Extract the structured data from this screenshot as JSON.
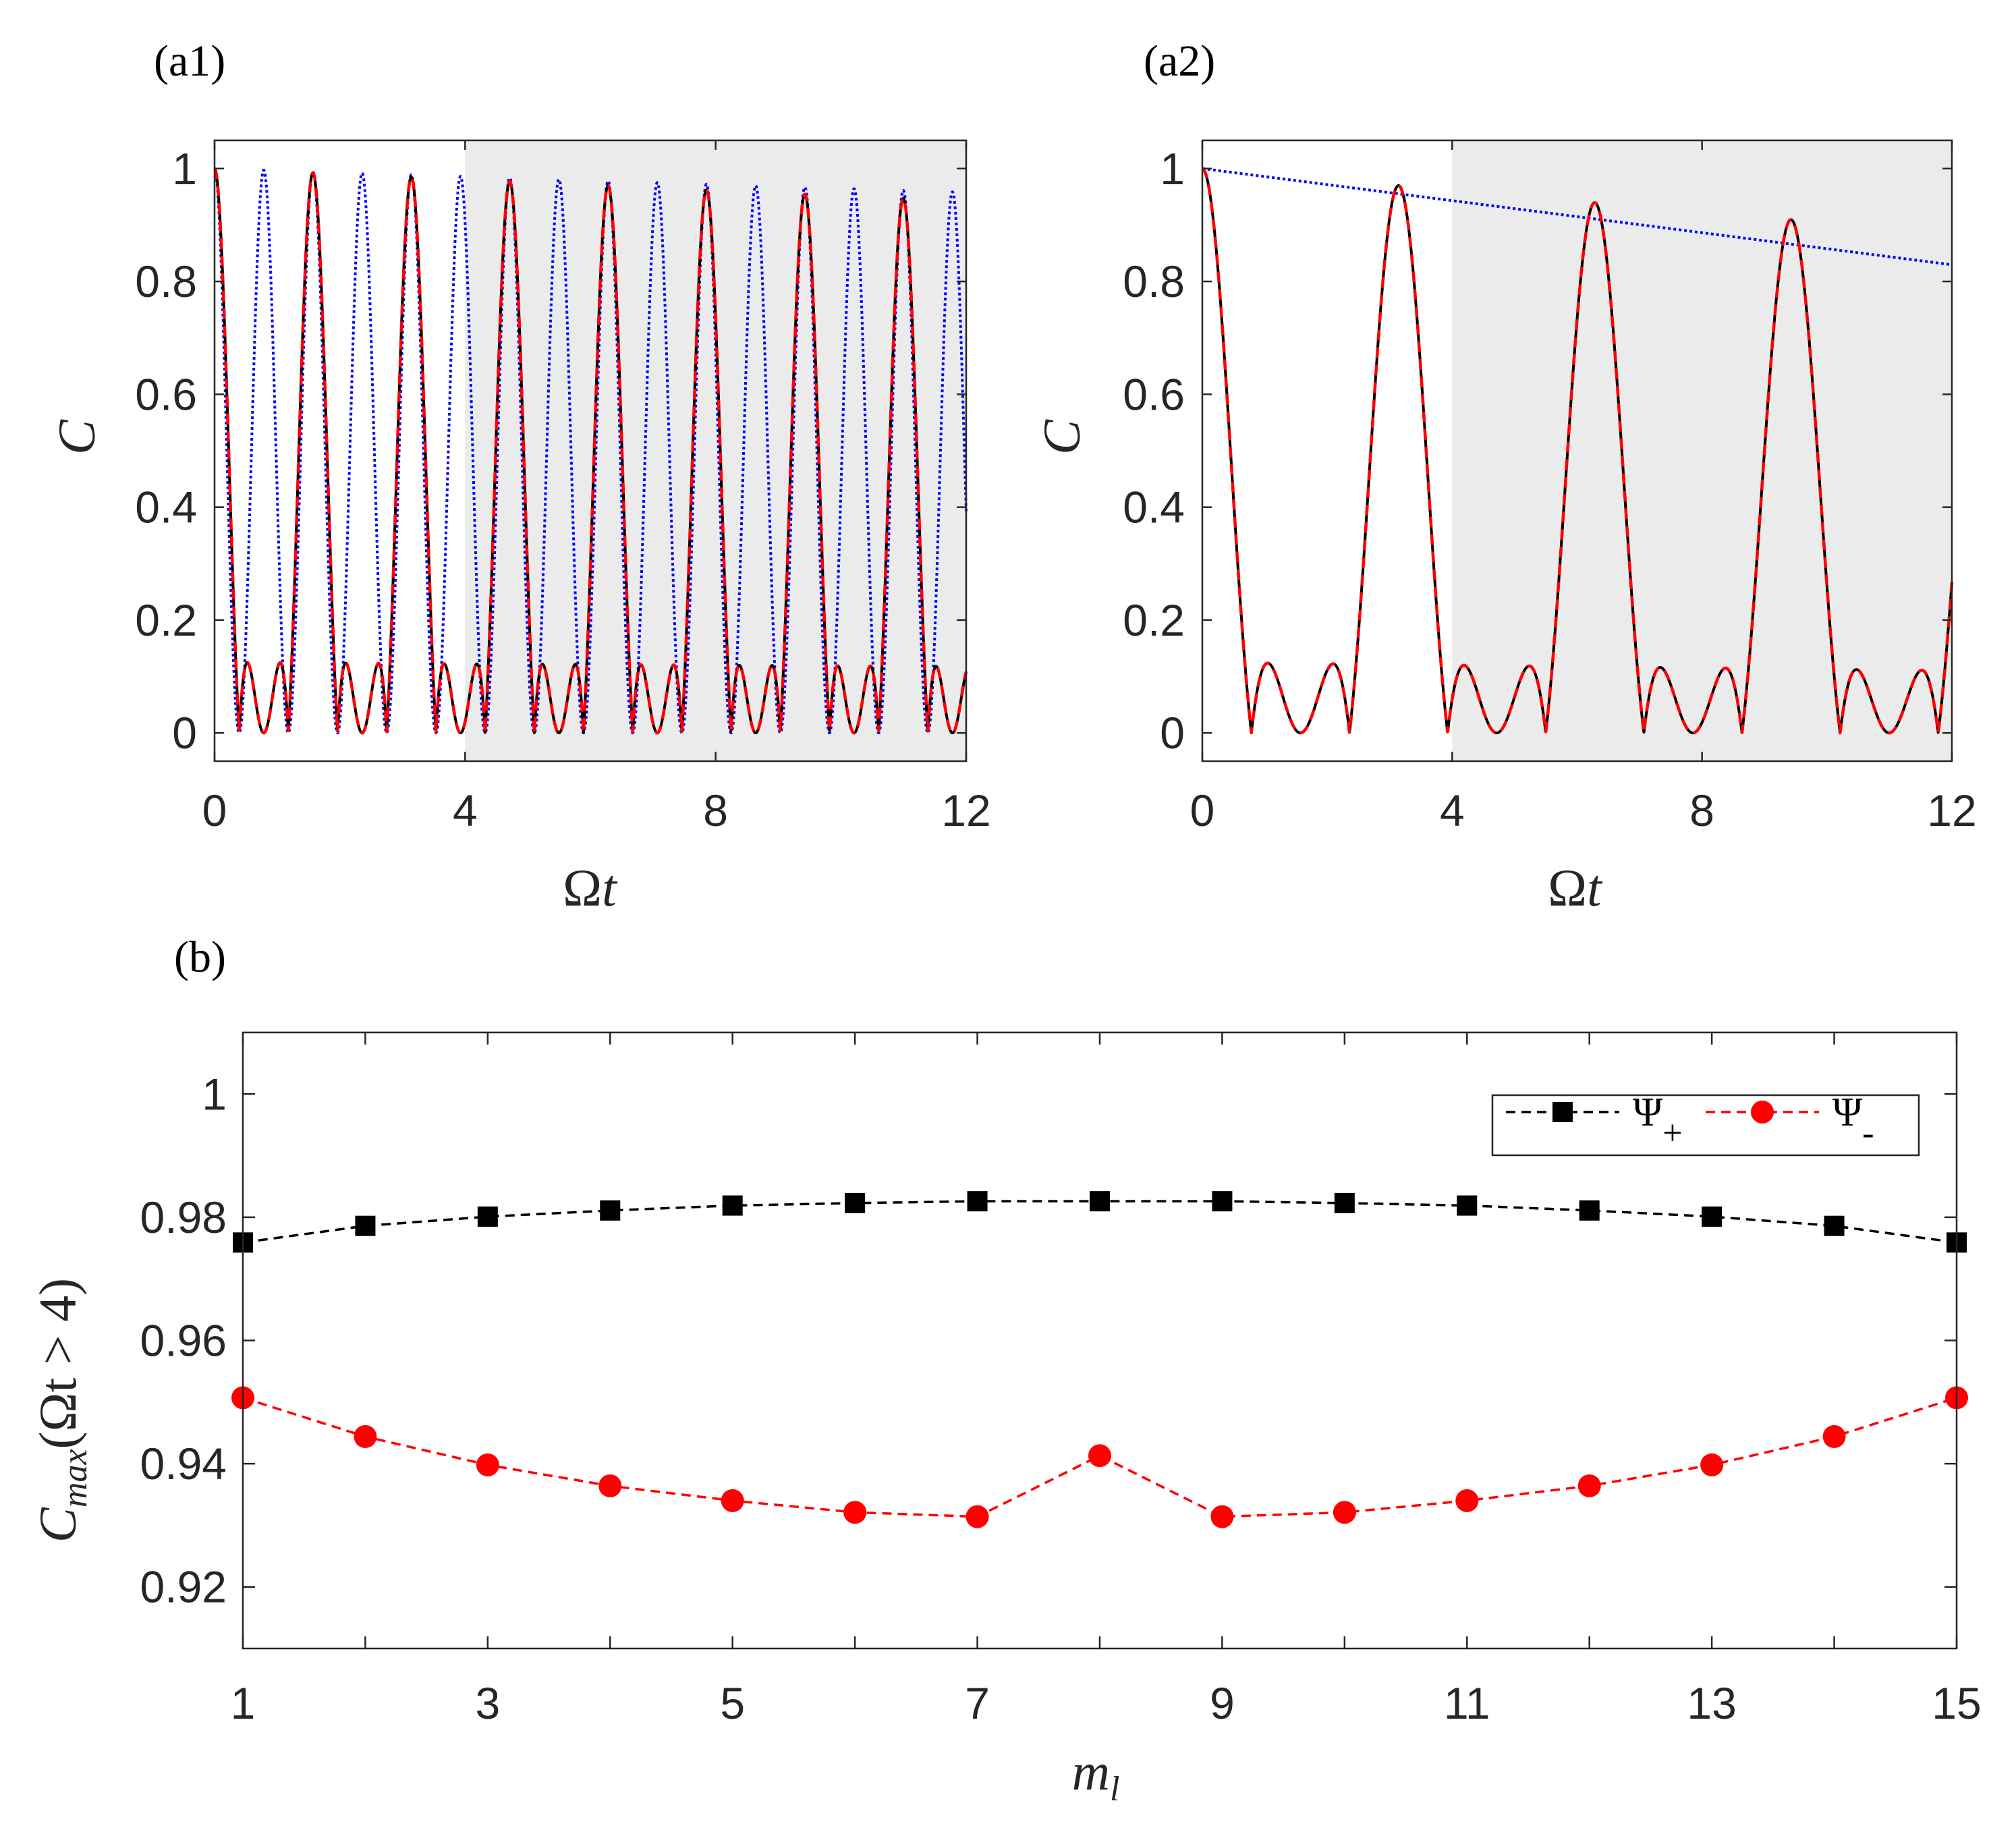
{
  "chart_data": [
    {
      "id": "a1",
      "panel_label": "(a1)",
      "type": "line",
      "xlabel_main": "Ω",
      "xlabel_var": "t",
      "ylabel": "C",
      "xlim": [
        0,
        12
      ],
      "ylim": [
        -0.05,
        1.05
      ],
      "xticks": [
        0,
        4,
        8,
        12
      ],
      "xtick_labels": [
        "0",
        "4",
        "8",
        "12"
      ],
      "yticks": [
        0,
        0.2,
        0.4,
        0.6,
        0.8,
        1
      ],
      "ytick_labels": [
        "0",
        "0.2",
        "0.4",
        "0.6",
        "0.8",
        "1"
      ],
      "shaded_region": [
        4,
        12
      ],
      "shade_color": "#ebebeb",
      "series": [
        {
          "name": "blue dotted",
          "color": "#0000ff",
          "style": "dotted",
          "formula": "blue_a1"
        },
        {
          "name": "black solid",
          "color": "#000000",
          "style": "solid",
          "formula": "main_a1"
        },
        {
          "name": "red dashed",
          "color": "#ff0000",
          "style": "dashed",
          "formula": "main_a1"
        }
      ]
    },
    {
      "id": "a2",
      "panel_label": "(a2)",
      "type": "line",
      "xlabel_main": "Ω",
      "xlabel_var": "t",
      "ylabel": "C",
      "xlim": [
        0,
        12
      ],
      "ylim": [
        -0.05,
        1.05
      ],
      "xticks": [
        0,
        4,
        8,
        12
      ],
      "xtick_labels": [
        "0",
        "4",
        "8",
        "12"
      ],
      "yticks": [
        0,
        0.2,
        0.4,
        0.6,
        0.8,
        1
      ],
      "ytick_labels": [
        "0",
        "0.2",
        "0.4",
        "0.6",
        "0.8",
        "1"
      ],
      "shaded_region": [
        4,
        12
      ],
      "shade_color": "#ebebeb",
      "series": [
        {
          "name": "blue dotted",
          "color": "#0000ff",
          "style": "dotted",
          "formula": "blue_a2"
        },
        {
          "name": "black solid",
          "color": "#000000",
          "style": "solid",
          "formula": "main_a2"
        },
        {
          "name": "red dashed",
          "color": "#ff0000",
          "style": "dashed",
          "formula": "main_a2"
        }
      ]
    },
    {
      "id": "b",
      "panel_label": "(b)",
      "type": "line",
      "xlabel": "m",
      "xlabel_sub": "l",
      "ylabel_main": "C",
      "ylabel_sub": "max",
      "ylabel_paren": "(Ωt > 4)",
      "xlim": [
        1,
        15
      ],
      "ylim": [
        0.91,
        1.01
      ],
      "xticks": [
        1,
        3,
        5,
        7,
        9,
        11,
        13,
        15
      ],
      "xtick_labels": [
        "1",
        "3",
        "5",
        "7",
        "9",
        "11",
        "13",
        "15"
      ],
      "yticks": [
        0.92,
        0.94,
        0.96,
        0.98,
        1
      ],
      "ytick_labels": [
        "0.92",
        "0.94",
        "0.96",
        "0.98",
        "1"
      ],
      "x": [
        1,
        2,
        3,
        4,
        5,
        6,
        7,
        8,
        9,
        10,
        11,
        12,
        13,
        14,
        15
      ],
      "series": [
        {
          "name": "Ψ+",
          "legend_main": "Ψ",
          "legend_sub": "+",
          "color": "#000000",
          "marker": "square",
          "values": [
            0.9759,
            0.9786,
            0.9801,
            0.9811,
            0.9819,
            0.9823,
            0.9826,
            0.9826,
            0.9826,
            0.9823,
            0.9819,
            0.9811,
            0.9801,
            0.9786,
            0.9759
          ]
        },
        {
          "name": "Ψ-",
          "legend_main": "Ψ",
          "legend_sub": "-",
          "color": "#ff0000",
          "marker": "circle",
          "values": [
            0.9507,
            0.9444,
            0.9398,
            0.9364,
            0.934,
            0.9321,
            0.9314,
            0.9413,
            0.9314,
            0.9321,
            0.934,
            0.9364,
            0.9398,
            0.9444,
            0.9507
          ]
        }
      ],
      "legend_position": "top-right"
    }
  ]
}
